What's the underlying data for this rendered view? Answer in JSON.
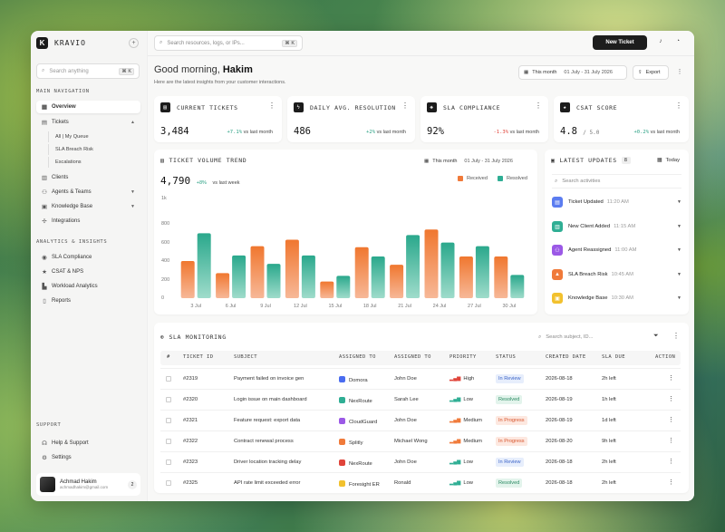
{
  "brand": {
    "name": "KRAVIO",
    "logo_letter": "K"
  },
  "sidebar": {
    "search_placeholder": "Search anything",
    "search_kbd": "⌘ K",
    "main_label": "MAIN NAVIGATION",
    "items": [
      {
        "label": "Overview",
        "icon": "grid-icon"
      },
      {
        "label": "Tickets",
        "icon": "ticket-icon"
      },
      {
        "label": "Clients",
        "icon": "clients-icon"
      },
      {
        "label": "Agents & Teams",
        "icon": "team-icon"
      },
      {
        "label": "Knowledge Base",
        "icon": "book-icon"
      },
      {
        "label": "Integrations",
        "icon": "plug-icon"
      }
    ],
    "ticket_sub": [
      "All | My Queue",
      "SLA Breach Risk",
      "Escalations"
    ],
    "analytics_label": "ANALYTICS & INSIGHTS",
    "analytics_items": [
      {
        "label": "SLA Compliance"
      },
      {
        "label": "CSAT & NPS"
      },
      {
        "label": "Workload Analytics"
      },
      {
        "label": "Reports"
      }
    ],
    "support_label": "SUPPORT",
    "support_items": [
      {
        "label": "Help & Support"
      },
      {
        "label": "Settings"
      }
    ],
    "user": {
      "name": "Achmad Hakim",
      "email": "achmadhakim@gmail.com",
      "badge": "2"
    }
  },
  "topbar": {
    "search_placeholder": "Search resources, logs, or IPs...",
    "search_kbd": "⌘ K",
    "new_ticket": "New Ticket"
  },
  "header": {
    "greeting": "Good morning,",
    "name": "Hakim",
    "subtitle": "Here are the latest insights from your customer interactions.",
    "period_label": "This month",
    "period_range": "01 July - 31 July 2026",
    "export": "Export"
  },
  "stats": [
    {
      "title": "CURRENT TICKETS",
      "value": "3,484",
      "delta": "+7.1%",
      "cmp": "vs last month",
      "trend": "up"
    },
    {
      "title": "DAILY AVG. RESOLUTION",
      "value": "486",
      "delta": "+2%",
      "cmp": "vs last month",
      "trend": "up"
    },
    {
      "title": "SLA COMPLIANCE",
      "value": "92%",
      "delta": "-1.3%",
      "cmp": "vs last month",
      "trend": "down"
    },
    {
      "title": "CSAT SCORE",
      "value": "4.8",
      "value_suffix": "/ 5.0",
      "delta": "+0.2%",
      "cmp": "vs last month",
      "trend": "up"
    }
  ],
  "trend": {
    "title": "TICKET VOLUME TREND",
    "period_label": "This month",
    "period_range": "01 July - 31 July 2026",
    "total": "4,790",
    "delta": "+8%",
    "cmp": "vs last week",
    "unit": "1k"
  },
  "chart_data": {
    "type": "bar",
    "categories": [
      "3 Jul",
      "6 Jul",
      "9 Jul",
      "12 Jul",
      "15 Jul",
      "18 Jul",
      "21 Jul",
      "24 Jul",
      "27 Jul",
      "30 Jul"
    ],
    "series": [
      {
        "name": "Received",
        "values": [
          400,
          270,
          560,
          630,
          180,
          550,
          360,
          740,
          450,
          450
        ]
      },
      {
        "name": "Resolved",
        "values": [
          700,
          460,
          370,
          460,
          240,
          450,
          680,
          600,
          560,
          250
        ]
      }
    ],
    "yticks": [
      "800",
      "600",
      "400",
      "200",
      "0"
    ],
    "ylim": [
      0,
      850
    ],
    "colors": {
      "Received": "#f07a3a",
      "Resolved": "#2fae94"
    },
    "legend_position": "top-right"
  },
  "updates": {
    "title": "LATEST UPDATES",
    "count": "8",
    "filter": "Today",
    "search_placeholder": "Search activities",
    "items": [
      {
        "label": "Ticket Updated",
        "time": "11:20 AM",
        "color": "#5b7cf0",
        "icon": "ticket-icon"
      },
      {
        "label": "New Client Added",
        "time": "11:15 AM",
        "color": "#2fae94",
        "icon": "client-icon"
      },
      {
        "label": "Agent Reassigned",
        "time": "11:00 AM",
        "color": "#9b59e6",
        "icon": "agent-icon"
      },
      {
        "label": "SLA Breach Risk",
        "time": "10:45 AM",
        "color": "#f07a3a",
        "icon": "alert-icon"
      },
      {
        "label": "Knowledge Base",
        "time": "10:30 AM",
        "color": "#f2c12e",
        "icon": "book-icon"
      }
    ]
  },
  "sla": {
    "title": "SLA MONITORING",
    "search_placeholder": "Search subject, ID...",
    "columns": [
      "#",
      "TICKET ID",
      "SUBJECT",
      "ASSIGNED TO",
      "ASSIGNED TO",
      "PRIORITY",
      "STATUS",
      "CREATED DATE",
      "SLA DUE",
      "ACTION"
    ],
    "rows": [
      {
        "id": "#2319",
        "subject": "Payment failed on invoice gen",
        "client": "Domora",
        "client_color": "#4a6cf0",
        "agent": "John Doe",
        "priority": "High",
        "status": "In Review",
        "status_class": "st-review",
        "date": "2026-08-18",
        "due": "2h left"
      },
      {
        "id": "#2320",
        "subject": "Login issue on main dashboard",
        "client": "NexRoute",
        "client_color": "#2fae94",
        "agent": "Sarah Lee",
        "priority": "Low",
        "status": "Resolved",
        "status_class": "st-resolved",
        "date": "2026-08-19",
        "due": "1h left"
      },
      {
        "id": "#2321",
        "subject": "Feature request: export data",
        "client": "CloudGuard",
        "client_color": "#9b59e6",
        "agent": "John Doe",
        "priority": "Medium",
        "status": "In Progress",
        "status_class": "st-progress",
        "date": "2026-08-19",
        "due": "1d left"
      },
      {
        "id": "#2322",
        "subject": "Contract renewal process",
        "client": "Splitly",
        "client_color": "#f07a3a",
        "agent": "Michael Wong",
        "priority": "Medium",
        "status": "In Progress",
        "status_class": "st-progress",
        "date": "2026-08-20",
        "due": "9h left"
      },
      {
        "id": "#2323",
        "subject": "Driver location tracking delay",
        "client": "NexRoute",
        "client_color": "#e0443a",
        "agent": "John Doe",
        "priority": "Low",
        "status": "In Review",
        "status_class": "st-review",
        "date": "2026-08-18",
        "due": "2h left"
      },
      {
        "id": "#2325",
        "subject": "API rate limit exceeded error",
        "client": "Foresight ER",
        "client_color": "#f2c12e",
        "agent": "Ronald",
        "priority": "Low",
        "status": "Resolved",
        "status_class": "st-resolved",
        "date": "2026-08-18",
        "due": "2h left"
      }
    ]
  }
}
